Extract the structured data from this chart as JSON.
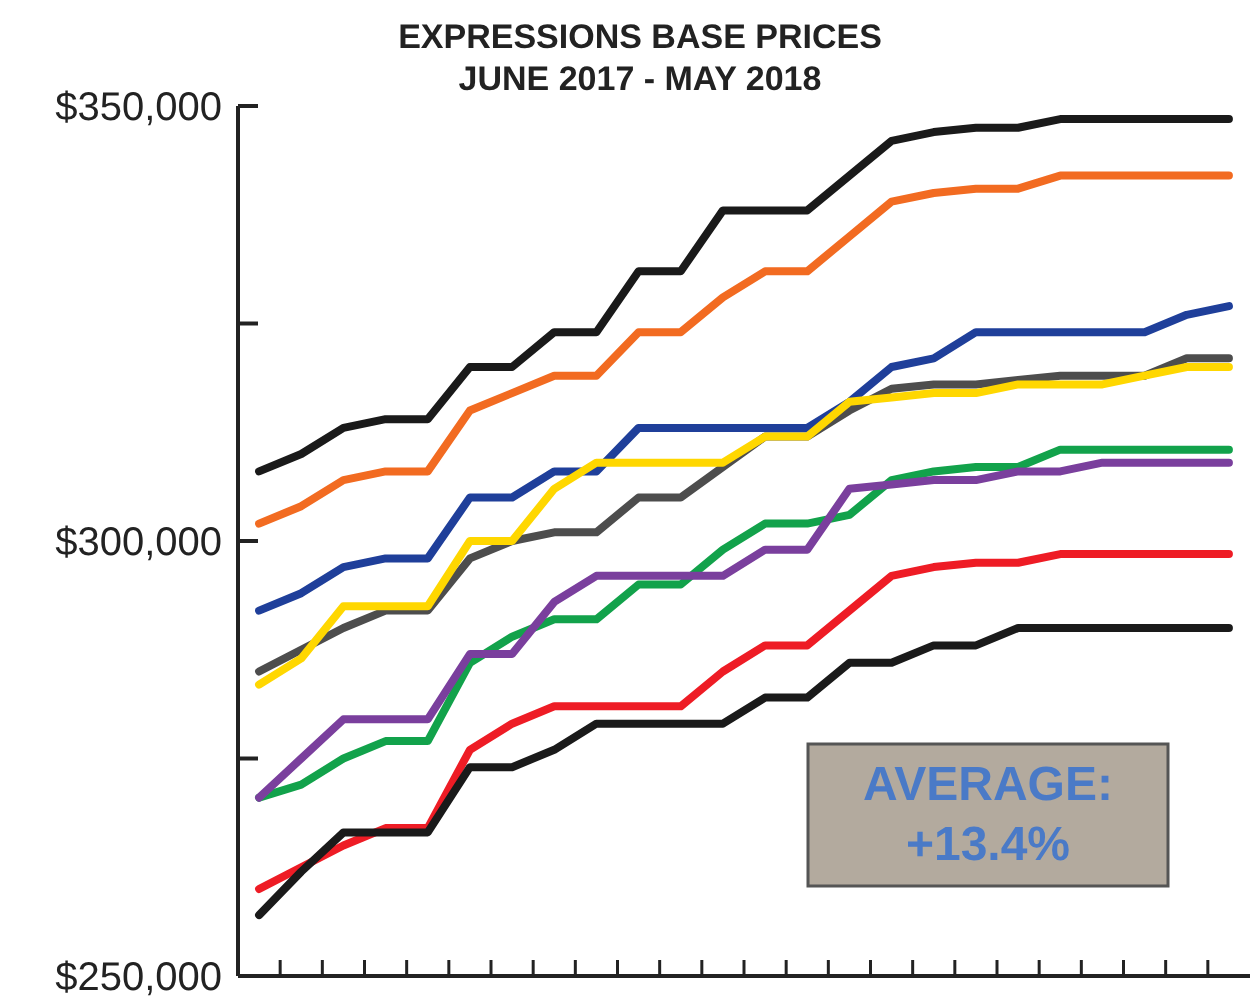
{
  "chart_data": {
    "type": "line",
    "title": "EXPRESSIONS BASE PRICES",
    "subtitle": "JUNE 2017 - MAY 2018",
    "categories": [
      null,
      null,
      null,
      null,
      null,
      null,
      null,
      null,
      null,
      null,
      null,
      null,
      null,
      null,
      null,
      null,
      null,
      null,
      null,
      null,
      null,
      null,
      null,
      null
    ],
    "series": [
      {
        "color": "#1a1a1a",
        "values": [
          308000,
          310000,
          313000,
          314000,
          314000,
          320000,
          320000,
          324000,
          324000,
          331000,
          331000,
          338000,
          338000,
          338000,
          342000,
          346000,
          347000,
          347500,
          347500,
          348500,
          348500,
          348500,
          348500,
          348500
        ]
      },
      {
        "color": "#f26b21",
        "values": [
          302000,
          304000,
          307000,
          308000,
          308000,
          315000,
          317000,
          319000,
          319000,
          324000,
          324000,
          328000,
          331000,
          331000,
          335000,
          339000,
          340000,
          340500,
          340500,
          342000,
          342000,
          342000,
          342000,
          342000
        ]
      },
      {
        "color": "#1f3f9a",
        "values": [
          292000,
          294000,
          297000,
          298000,
          298000,
          305000,
          305000,
          308000,
          308000,
          313000,
          313000,
          313000,
          313000,
          313000,
          316000,
          320000,
          321000,
          324000,
          324000,
          324000,
          324000,
          324000,
          326000,
          327000
        ]
      },
      {
        "color": "#4d4d4d",
        "values": [
          285000,
          287500,
          290000,
          292000,
          292000,
          298000,
          300000,
          301000,
          301000,
          305000,
          305000,
          308500,
          312000,
          312000,
          315000,
          317500,
          318000,
          318000,
          318500,
          319000,
          319000,
          319000,
          321000,
          321000
        ]
      },
      {
        "color": "#ffd700",
        "values": [
          283500,
          286500,
          292500,
          292500,
          292500,
          300000,
          300000,
          306000,
          309000,
          309000,
          309000,
          309000,
          312000,
          312000,
          316000,
          316500,
          317000,
          317000,
          318000,
          318000,
          318000,
          319000,
          320000,
          320000
        ]
      },
      {
        "color": "#12a24b",
        "values": [
          270500,
          272000,
          275000,
          277000,
          277000,
          286000,
          289000,
          291000,
          291000,
          295000,
          295000,
          299000,
          302000,
          302000,
          303000,
          307000,
          308000,
          308500,
          308500,
          310500,
          310500,
          310500,
          310500,
          310500
        ]
      },
      {
        "color": "#7a3f9d",
        "values": [
          270500,
          275000,
          279500,
          279500,
          279500,
          287000,
          287000,
          293000,
          296000,
          296000,
          296000,
          296000,
          299000,
          299000,
          306000,
          306500,
          307000,
          307000,
          308000,
          308000,
          309000,
          309000,
          309000,
          309000
        ]
      },
      {
        "color": "#ee1c25",
        "values": [
          260000,
          262500,
          265000,
          267000,
          267000,
          276000,
          279000,
          281000,
          281000,
          281000,
          281000,
          285000,
          288000,
          288000,
          292000,
          296000,
          297000,
          297500,
          297500,
          298500,
          298500,
          298500,
          298500,
          298500
        ]
      },
      {
        "color": "#1a1a1a",
        "values": [
          257000,
          262000,
          266500,
          266500,
          266500,
          274000,
          274000,
          276000,
          279000,
          279000,
          279000,
          279000,
          282000,
          282000,
          286000,
          286000,
          288000,
          288000,
          290000,
          290000,
          290000,
          290000,
          290000,
          290000
        ]
      }
    ],
    "ylim": [
      250000,
      350000
    ],
    "yticks": [
      {
        "value": 250000,
        "label": "$250,000"
      },
      {
        "value": 275000,
        "label": null
      },
      {
        "value": 300000,
        "label": "$300,000"
      },
      {
        "value": 325000,
        "label": null
      },
      {
        "value": 350000,
        "label": "$350,000"
      }
    ],
    "tick_labels": "y",
    "annotations": [
      "AVERAGE: +13.4%"
    ]
  }
}
